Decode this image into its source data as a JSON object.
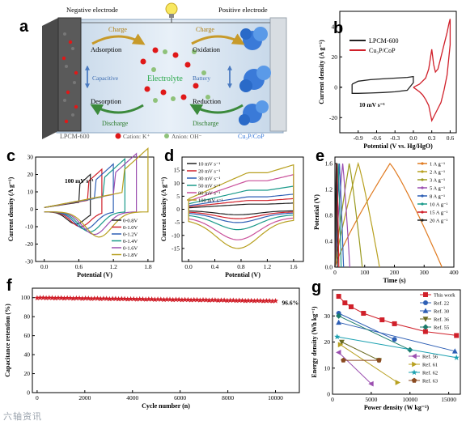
{
  "panel_letters": {
    "a": "a",
    "b": "b",
    "c": "c",
    "d": "d",
    "e": "e",
    "f": "f",
    "g": "g"
  },
  "schematic": {
    "negative_electrode": "Negative electrode",
    "positive_electrode": "Positive electrode",
    "charge_left": "Charge",
    "charge_right": "Charge",
    "adsorption": "Adsorption",
    "desorption": "Desorption",
    "capacitive": "Capacitive",
    "electrolyte": "Electrolyte",
    "battery": "Battery",
    "oxidation": "Oxidation",
    "reduction": "Reduction",
    "discharge_left": "Discharge",
    "discharge_right": "Discharge",
    "lpcm_label": "LPCM-600",
    "cation_label": "Cation: K⁺",
    "anion_label": "Anion: OH⁻",
    "cu3p_label": "Cu₃P/CoP",
    "colors": {
      "background": "#dce8f4",
      "electrolyte_text": "#2aa84a",
      "cation": "#e01818",
      "anion": "#8fc27a",
      "arrow_charge": "#c79a2a",
      "arrow_discharge": "#3c8a3c"
    }
  },
  "watermark": "六轴资讯",
  "chart_data": [
    {
      "panel": "b",
      "type": "line",
      "xlabel": "Potential (V vs. Hg/HgO)",
      "ylabel": "Current density (A g⁻¹)",
      "xlim": [
        -1.2,
        0.7
      ],
      "ylim": [
        -30,
        50
      ],
      "xticks": [
        -0.9,
        -0.6,
        -0.3,
        0.0,
        0.3,
        0.6
      ],
      "yticks": [
        -20,
        0,
        20,
        40
      ],
      "annotation": "10 mV s⁻¹",
      "series": [
        {
          "name": "LPCM-600",
          "color": "#222222",
          "x": [
            -1.0,
            -0.9,
            -0.7,
            -0.5,
            -0.3,
            -0.1,
            0.0,
            0.0,
            -0.1,
            -0.3,
            -0.5,
            -0.7,
            -0.9,
            -1.0,
            -1.0
          ],
          "y": [
            2,
            4,
            5,
            5.5,
            6,
            6.5,
            7,
            3,
            -2,
            -3,
            -3.5,
            -3.8,
            -4,
            -4,
            2
          ]
        },
        {
          "name": "Cu₃P/CoP",
          "color": "#d0202a",
          "x": [
            0.0,
            0.1,
            0.2,
            0.25,
            0.3,
            0.33,
            0.36,
            0.4,
            0.45,
            0.5,
            0.55,
            0.58,
            0.6,
            0.6,
            0.55,
            0.5,
            0.45,
            0.4,
            0.35,
            0.3,
            0.28,
            0.25,
            0.2,
            0.15,
            0.1,
            0.0
          ],
          "y": [
            0,
            2,
            6,
            12,
            25,
            15,
            10,
            12,
            20,
            28,
            36,
            42,
            45,
            28,
            8,
            -2,
            -10,
            -14,
            -18,
            -22,
            -18,
            -12,
            -8,
            -5,
            -3,
            0
          ]
        }
      ]
    },
    {
      "panel": "c",
      "type": "line",
      "xlabel": "Potential (V)",
      "ylabel": "Current density (A g⁻¹)",
      "xlim": [
        -0.15,
        1.9
      ],
      "ylim": [
        -30,
        30
      ],
      "xticks": [
        0.0,
        0.6,
        1.2,
        1.8
      ],
      "yticks": [
        -30,
        -20,
        -10,
        0,
        10,
        20,
        30
      ],
      "annotation": "100 mV s⁻¹",
      "series": [
        {
          "name": "0-0.8V",
          "color": "#222222",
          "vmax": 0.8
        },
        {
          "name": "0-1.0V",
          "color": "#d0202a",
          "vmax": 1.0
        },
        {
          "name": "0-1.2V",
          "color": "#2e5fb5",
          "vmax": 1.2
        },
        {
          "name": "0-1.4V",
          "color": "#1a9a8a",
          "vmax": 1.4
        },
        {
          "name": "0-1.6V",
          "color": "#9b4fb0",
          "vmax": 1.6
        },
        {
          "name": "0-1.8V",
          "color": "#b8a020",
          "vmax": 1.8
        }
      ]
    },
    {
      "panel": "d",
      "type": "line",
      "xlabel": "Potential (V)",
      "ylabel": "Current density (A g⁻¹)",
      "xlim": [
        -0.1,
        1.75
      ],
      "ylim": [
        -20,
        20
      ],
      "xticks": [
        0.0,
        0.4,
        0.8,
        1.2,
        1.6
      ],
      "yticks": [
        -15,
        -10,
        -5,
        0,
        5,
        10,
        15
      ],
      "series": [
        {
          "name": "10 mV s⁻¹",
          "color": "#222222",
          "scale": 0.14
        },
        {
          "name": "20 mV s⁻¹",
          "color": "#d0202a",
          "scale": 0.24
        },
        {
          "name": "30 mV s⁻¹",
          "color": "#2e5fb5",
          "scale": 0.34
        },
        {
          "name": "50 mV s⁻¹",
          "color": "#1a9a8a",
          "scale": 0.52
        },
        {
          "name": "80 mV s⁻¹",
          "color": "#c9509a",
          "scale": 0.78
        },
        {
          "name": "100 mV s⁻¹",
          "color": "#b8a020",
          "scale": 1.0
        }
      ]
    },
    {
      "panel": "e",
      "type": "line",
      "xlabel": "Time (s)",
      "ylabel": "Potential (V)",
      "xlim": [
        0,
        400
      ],
      "ylim": [
        0,
        1.7
      ],
      "xticks": [
        0,
        100,
        200,
        300,
        400
      ],
      "yticks": [
        0.0,
        0.4,
        0.8,
        1.2,
        1.6
      ],
      "series": [
        {
          "name": "1 A g⁻¹",
          "color": "#e07a20",
          "tc": 185,
          "td": 175
        },
        {
          "name": "2 A g⁻¹",
          "color": "#b8a020",
          "tc": 78,
          "td": 72
        },
        {
          "name": "3 A g⁻¹",
          "color": "#9a9a20",
          "tc": 48,
          "td": 44
        },
        {
          "name": "5 A g⁻¹",
          "color": "#9b4fb0",
          "tc": 26,
          "td": 24
        },
        {
          "name": "8 A g⁻¹",
          "color": "#2e5fb5",
          "tc": 15,
          "td": 14
        },
        {
          "name": "10 A g⁻¹",
          "color": "#1a9a8a",
          "tc": 11,
          "td": 10
        },
        {
          "name": "15 A g⁻¹",
          "color": "#d0202a",
          "tc": 7,
          "td": 6
        },
        {
          "name": "20 A g⁻¹",
          "color": "#222222",
          "tc": 4.5,
          "td": 4
        }
      ]
    },
    {
      "panel": "f",
      "type": "scatter",
      "xlabel": "Cycle number (n)",
      "ylabel": "Capacitance retention (%)",
      "xlim": [
        -200,
        11000
      ],
      "ylim": [
        0,
        110
      ],
      "xticks": [
        0,
        2000,
        4000,
        6000,
        8000,
        10000
      ],
      "yticks": [
        0,
        20,
        40,
        60,
        80,
        100
      ],
      "annotation": "96.6%",
      "series": [
        {
          "color": "#d0202a",
          "start": 100,
          "end": 96.6,
          "n_points": 80,
          "last_cycle": 10000
        }
      ]
    },
    {
      "panel": "g",
      "type": "line",
      "xlabel": "Power density (W kg⁻¹)",
      "ylabel": "Energy density (Wh kg⁻¹)",
      "xlim": [
        0,
        16500
      ],
      "ylim": [
        0,
        40
      ],
      "xticks": [
        0,
        5000,
        10000,
        15000
      ],
      "yticks": [
        0,
        10,
        20,
        30
      ],
      "series": [
        {
          "name": "This work",
          "color": "#d0202a",
          "marker": "square",
          "x": [
            800,
            1600,
            2400,
            4000,
            6400,
            8000,
            12000,
            16000
          ],
          "y": [
            37.5,
            35,
            33.5,
            31,
            28.5,
            27,
            24,
            22.5
          ]
        },
        {
          "name": "Ref. 22",
          "color": "#2e5fb5",
          "marker": "circle",
          "x": [
            800,
            8000
          ],
          "y": [
            31,
            21
          ]
        },
        {
          "name": "Ref. 30",
          "color": "#2e5fb5",
          "marker": "triangle",
          "x": [
            800,
            15800
          ],
          "y": [
            27.5,
            16.5
          ]
        },
        {
          "name": "Ref. 36",
          "color": "#6a6a20",
          "marker": "triangle-down",
          "x": [
            1200,
            6000
          ],
          "y": [
            20,
            13
          ]
        },
        {
          "name": "Ref. 55",
          "color": "#1a7a6a",
          "marker": "diamond",
          "x": [
            800,
            10000
          ],
          "y": [
            30,
            17
          ]
        },
        {
          "name": "Ref. 56",
          "color": "#9b4fb0",
          "marker": "triangle-left",
          "x": [
            800,
            5000
          ],
          "y": [
            16,
            4
          ]
        },
        {
          "name": "Ref. 61",
          "color": "#b8a020",
          "marker": "triangle-right",
          "x": [
            1000,
            8400
          ],
          "y": [
            19,
            4.5
          ]
        },
        {
          "name": "Ref. 62",
          "color": "#1aa0b0",
          "marker": "star",
          "x": [
            600,
            16000
          ],
          "y": [
            22,
            14
          ]
        },
        {
          "name": "Ref. 63",
          "color": "#8a4a20",
          "marker": "pentagon",
          "x": [
            1400,
            6000
          ],
          "y": [
            13,
            13
          ]
        }
      ]
    }
  ]
}
